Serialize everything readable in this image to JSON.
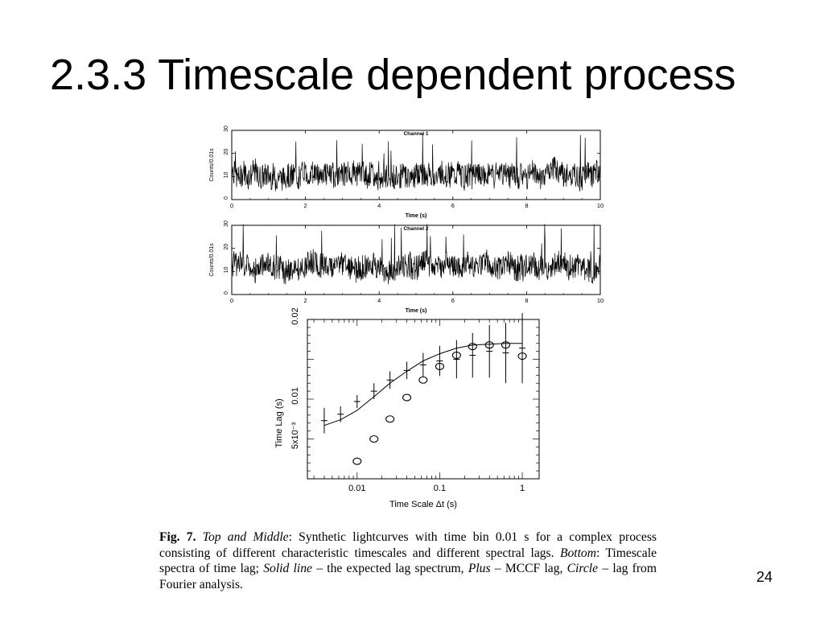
{
  "slide": {
    "title": "2.3.3 Timescale dependent process",
    "page_number": "24"
  },
  "caption": {
    "fig_label": "Fig. 7.",
    "part1_label": "Top and Middle",
    "part1_text": ": Synthetic lightcurves with time bin 0.01 s for a complex process consisting of different characteristic timescales and different spectral lags. ",
    "part2_label": "Bottom",
    "part2_text": ": Timescale spectra of time lag; ",
    "solid_label": "Solid line",
    "solid_text": " – the expected lag spectrum, ",
    "plus_label": "Plus",
    "plus_text": " – MCCF lag, ",
    "circle_label": "Circle",
    "circle_text": " – lag from Fourier analysis."
  },
  "chart_data": [
    {
      "type": "line",
      "title": "Channel 1",
      "xlabel": "Time (s)",
      "ylabel": "Counts/0.01s",
      "xlim": [
        0,
        10
      ],
      "ylim": [
        0,
        30
      ],
      "xticks": [
        0,
        2,
        4,
        6,
        8,
        10
      ],
      "yticks": [
        0,
        10,
        20,
        30
      ],
      "mean": 11,
      "spread": 9,
      "seed": 7,
      "n_points": 1000
    },
    {
      "type": "line",
      "title": "Channel 2",
      "xlabel": "Time (s)",
      "ylabel": "Counts/0.01s",
      "xlim": [
        0,
        10
      ],
      "ylim": [
        0,
        30
      ],
      "xticks": [
        0,
        2,
        4,
        6,
        8,
        10
      ],
      "yticks": [
        0,
        10,
        20,
        30
      ],
      "mean": 12,
      "spread": 9,
      "seed": 23,
      "n_points": 1000
    },
    {
      "type": "scatter",
      "title": "",
      "xlabel": "Time Scale Δt (s)",
      "ylabel": "Time Lag (s)",
      "x_scale": "log",
      "xlim": [
        0.0025,
        1.6
      ],
      "ylim": [
        0,
        0.02
      ],
      "xticks": [
        0.01,
        0.1,
        1
      ],
      "xtick_labels": [
        "0.01",
        "0.1",
        "1"
      ],
      "yticks": [
        0.005,
        0.01,
        0.02
      ],
      "ytick_labels": [
        "5x10⁻³",
        "0.01",
        "0.02"
      ],
      "series": [
        {
          "marker": "line",
          "points": [
            [
              0.004,
              0.0067
            ],
            [
              0.0063,
              0.0074
            ],
            [
              0.01,
              0.0086
            ],
            [
              0.016,
              0.0103
            ],
            [
              0.025,
              0.012
            ],
            [
              0.04,
              0.0135
            ],
            [
              0.063,
              0.0148
            ],
            [
              0.1,
              0.0157
            ],
            [
              0.16,
              0.0164
            ],
            [
              0.25,
              0.0168
            ],
            [
              0.4,
              0.0169
            ],
            [
              0.63,
              0.017
            ],
            [
              1.0,
              0.017
            ]
          ]
        },
        {
          "marker": "plus",
          "points": [
            [
              0.004,
              0.0073,
              0.0016
            ],
            [
              0.0063,
              0.0081,
              0.001
            ],
            [
              0.01,
              0.0097,
              0.0008
            ],
            [
              0.016,
              0.011,
              0.001
            ],
            [
              0.025,
              0.0124,
              0.0011
            ],
            [
              0.04,
              0.0136,
              0.0011
            ],
            [
              0.063,
              0.0143,
              0.0015
            ],
            [
              0.1,
              0.0148,
              0.0019
            ],
            [
              0.16,
              0.015,
              0.0024
            ],
            [
              0.25,
              0.0155,
              0.0028
            ],
            [
              0.4,
              0.016,
              0.0033
            ],
            [
              0.63,
              0.0158,
              0.0038
            ],
            [
              1.0,
              0.0164,
              0.0044
            ]
          ]
        },
        {
          "marker": "circle",
          "points": [
            [
              0.01,
              0.0022
            ],
            [
              0.016,
              0.005
            ],
            [
              0.025,
              0.0075
            ],
            [
              0.04,
              0.0102
            ],
            [
              0.063,
              0.0124
            ],
            [
              0.1,
              0.0141
            ],
            [
              0.16,
              0.0155
            ],
            [
              0.25,
              0.0166
            ],
            [
              0.4,
              0.0168
            ],
            [
              0.63,
              0.0168
            ],
            [
              1.0,
              0.0154
            ]
          ]
        }
      ]
    }
  ]
}
